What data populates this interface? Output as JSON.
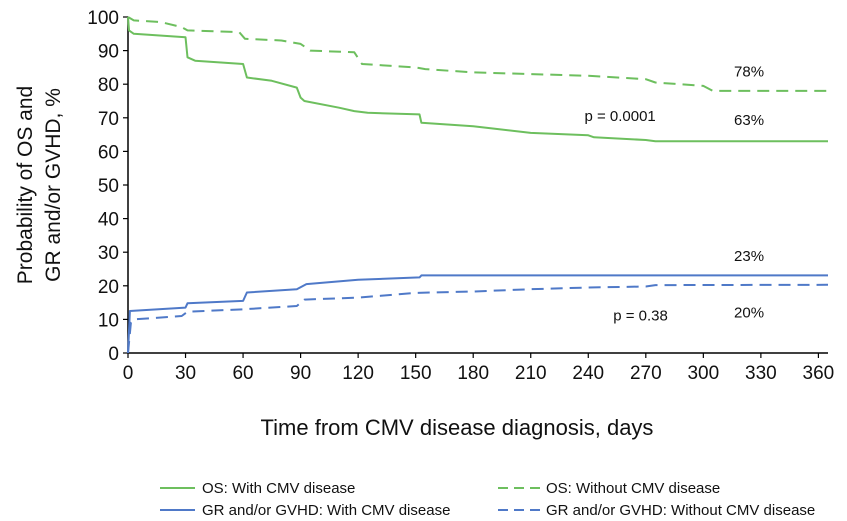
{
  "chart_data": {
    "type": "line",
    "xlabel": "Time from CMV disease diagnosis, days",
    "ylabel_lines": [
      "Probability of OS and",
      "GR and/or GVHD, %"
    ],
    "xlim": [
      0,
      365
    ],
    "ylim": [
      0,
      100
    ],
    "x_ticks": [
      0,
      30,
      60,
      90,
      120,
      150,
      180,
      210,
      240,
      270,
      300,
      330,
      360
    ],
    "y_ticks": [
      0,
      10,
      20,
      30,
      40,
      50,
      60,
      70,
      80,
      90,
      100
    ],
    "grid": false,
    "legend_position": "bottom",
    "series": [
      {
        "name": "OS: With CMV disease",
        "color": "#6dbf5e",
        "dash": "solid",
        "points": [
          [
            0,
            100
          ],
          [
            0.5,
            96
          ],
          [
            3,
            95
          ],
          [
            30,
            94
          ],
          [
            31,
            88
          ],
          [
            35,
            87
          ],
          [
            60,
            86
          ],
          [
            62,
            82
          ],
          [
            75,
            81
          ],
          [
            88,
            79
          ],
          [
            90,
            76
          ],
          [
            92,
            75
          ],
          [
            110,
            73
          ],
          [
            118,
            72
          ],
          [
            125,
            71.5
          ],
          [
            152,
            71
          ],
          [
            153,
            68.5
          ],
          [
            180,
            67.5
          ],
          [
            210,
            65.5
          ],
          [
            240,
            64.8
          ],
          [
            243,
            64.2
          ],
          [
            270,
            63.4
          ],
          [
            275,
            63
          ],
          [
            365,
            63
          ]
        ]
      },
      {
        "name": "OS: Without CMV disease",
        "color": "#6dbf5e",
        "dash": "dashed",
        "points": [
          [
            0,
            100
          ],
          [
            3,
            99
          ],
          [
            17,
            98.5
          ],
          [
            28,
            97
          ],
          [
            31,
            96
          ],
          [
            58,
            95.5
          ],
          [
            61,
            93.5
          ],
          [
            80,
            93
          ],
          [
            90,
            92
          ],
          [
            95,
            90
          ],
          [
            118,
            89.5
          ],
          [
            122,
            86
          ],
          [
            150,
            85
          ],
          [
            155,
            84.5
          ],
          [
            180,
            83.5
          ],
          [
            210,
            83
          ],
          [
            240,
            82.5
          ],
          [
            270,
            81.5
          ],
          [
            275,
            80.5
          ],
          [
            300,
            79.5
          ],
          [
            305,
            78
          ],
          [
            365,
            78
          ]
        ]
      },
      {
        "name": "GR and/or GVHD: With CMV disease",
        "color": "#4f79c8",
        "dash": "solid",
        "points": [
          [
            0,
            0
          ],
          [
            1,
            12.5
          ],
          [
            30,
            13.5
          ],
          [
            31,
            14.8
          ],
          [
            60,
            15.5
          ],
          [
            62,
            18
          ],
          [
            88,
            19
          ],
          [
            93,
            20.5
          ],
          [
            120,
            21.8
          ],
          [
            152,
            22.5
          ],
          [
            153,
            23.1
          ],
          [
            365,
            23.1
          ]
        ]
      },
      {
        "name": "GR and/or GVHD: Without CMV disease",
        "color": "#4f79c8",
        "dash": "dashed",
        "points": [
          [
            0,
            0
          ],
          [
            1.5,
            9
          ],
          [
            3,
            10
          ],
          [
            28,
            11
          ],
          [
            31,
            12.3
          ],
          [
            60,
            13
          ],
          [
            88,
            14
          ],
          [
            92,
            15.9
          ],
          [
            120,
            16.5
          ],
          [
            150,
            17.9
          ],
          [
            180,
            18.3
          ],
          [
            210,
            19
          ],
          [
            240,
            19.5
          ],
          [
            270,
            19.8
          ],
          [
            275,
            20.2
          ],
          [
            365,
            20.3
          ]
        ]
      }
    ],
    "annotations": [
      {
        "text": "78%",
        "x": 316,
        "y": 82.3
      },
      {
        "text": "p = 0.0001",
        "x": 238,
        "y": 69.1
      },
      {
        "text": "63%",
        "x": 316,
        "y": 67.8
      },
      {
        "text": "23%",
        "x": 316,
        "y": 27.4
      },
      {
        "text": "p = 0.38",
        "x": 253,
        "y": 9.6
      },
      {
        "text": "20%",
        "x": 316,
        "y": 10.5
      }
    ]
  }
}
